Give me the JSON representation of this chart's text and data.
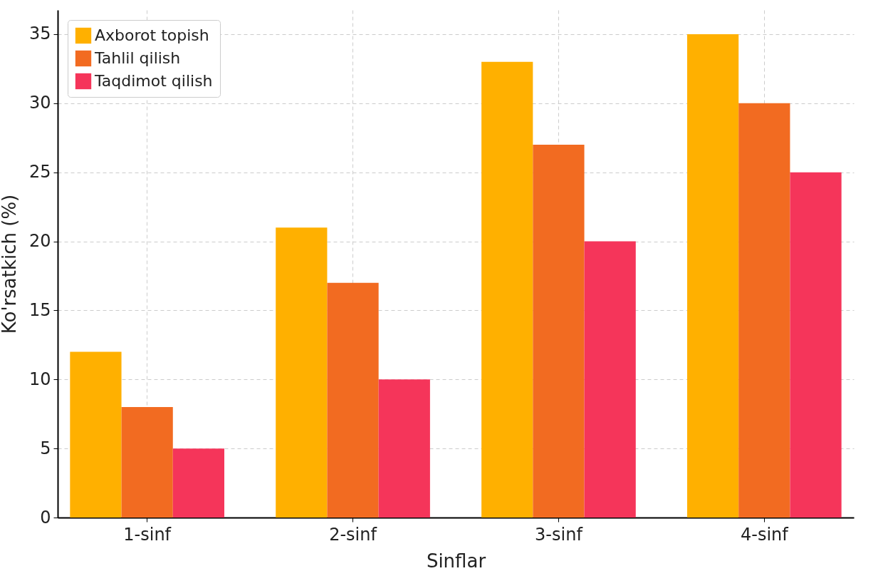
{
  "chart_data": {
    "type": "bar",
    "xlabel": "Sinflar",
    "ylabel": "Ko'rsatkich (%)",
    "categories": [
      "1-sinf",
      "2-sinf",
      "3-sinf",
      "4-sinf"
    ],
    "series": [
      {
        "name": "Axborot topish",
        "color": "#ffb000",
        "values": [
          12,
          21,
          33,
          35
        ]
      },
      {
        "name": "Tahlil qilish",
        "color": "#f26b21",
        "values": [
          8,
          17,
          27,
          30
        ]
      },
      {
        "name": "Taqdimot qilish",
        "color": "#f5355a",
        "values": [
          5,
          10,
          20,
          25
        ]
      }
    ],
    "ylim": [
      0,
      36.75
    ],
    "yticks": [
      0,
      5,
      10,
      15,
      20,
      25,
      30,
      35
    ],
    "grid": true,
    "legend": "top left"
  }
}
